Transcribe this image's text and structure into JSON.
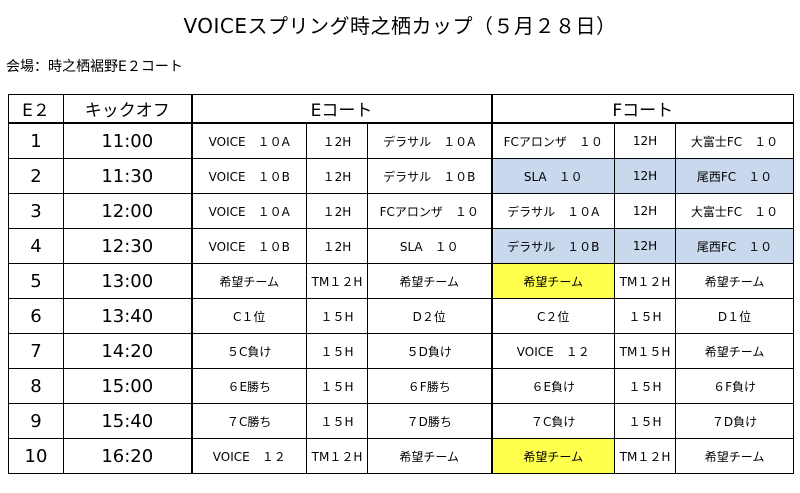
{
  "title": "VOICEスプリング時之栖カップ（５月２８日）",
  "venue": "会場：時之栖裾野E２コート",
  "headers": {
    "court": "E２",
    "kickoff": "キックオフ",
    "e_court": "Eコート",
    "f_court": "Fコート"
  },
  "highlight_colors": {
    "blue": "#c9d8ec",
    "yellow": "#ffff4d"
  },
  "rows": [
    {
      "num": "1",
      "time": "11:00",
      "e": [
        "VOICE　１０A",
        "１2H",
        "デラサル　１０A"
      ],
      "f": [
        "FCアロンザ　１０",
        "12H",
        "大富士FC　１０"
      ],
      "f_hl": ""
    },
    {
      "num": "2",
      "time": "11:30",
      "e": [
        "VOICE　１０B",
        "１2H",
        "デラサル　１０B"
      ],
      "f": [
        "SLA　１０",
        "12H",
        "尾西FC　１０"
      ],
      "f_hl": "blue"
    },
    {
      "num": "3",
      "time": "12:00",
      "e": [
        "VOICE　１０A",
        "１2H",
        "FCアロンザ　１０"
      ],
      "f": [
        "デラサル　１０A",
        "12H",
        "大富士FC　１０"
      ],
      "f_hl": ""
    },
    {
      "num": "4",
      "time": "12:30",
      "e": [
        "VOICE　１０B",
        "１2H",
        "SLA　１０"
      ],
      "f": [
        "デラサル　１０B",
        "12H",
        "尾西FC　１０"
      ],
      "f_hl": "blue"
    },
    {
      "num": "5",
      "time": "13:00",
      "e": [
        "希望チーム",
        "TM１２H",
        "希望チーム"
      ],
      "f": [
        "希望チーム",
        "TM１２H",
        "希望チーム"
      ],
      "f_hl": "yellow-first"
    },
    {
      "num": "6",
      "time": "13:40",
      "e": [
        "C１位",
        "１５H",
        "D２位"
      ],
      "f": [
        "C２位",
        "１５H",
        "D１位"
      ],
      "f_hl": ""
    },
    {
      "num": "7",
      "time": "14:20",
      "e": [
        "５C負け",
        "１５H",
        "５D負け"
      ],
      "f": [
        "VOICE　１２",
        "TM１５H",
        "希望チーム"
      ],
      "f_hl": ""
    },
    {
      "num": "8",
      "time": "15:00",
      "e": [
        "６E勝ち",
        "１５H",
        "６F勝ち"
      ],
      "f": [
        "６E負け",
        "１５H",
        "６F負け"
      ],
      "f_hl": ""
    },
    {
      "num": "9",
      "time": "15:40",
      "e": [
        "７C勝ち",
        "１５H",
        "７D勝ち"
      ],
      "f": [
        "７C負け",
        "１５H",
        "７D負け"
      ],
      "f_hl": ""
    },
    {
      "num": "10",
      "time": "16:20",
      "e": [
        "VOICE　１２",
        "TM１２H",
        "希望チーム"
      ],
      "f": [
        "希望チーム",
        "TM１２H",
        "希望チーム"
      ],
      "f_hl": "yellow-first"
    }
  ]
}
